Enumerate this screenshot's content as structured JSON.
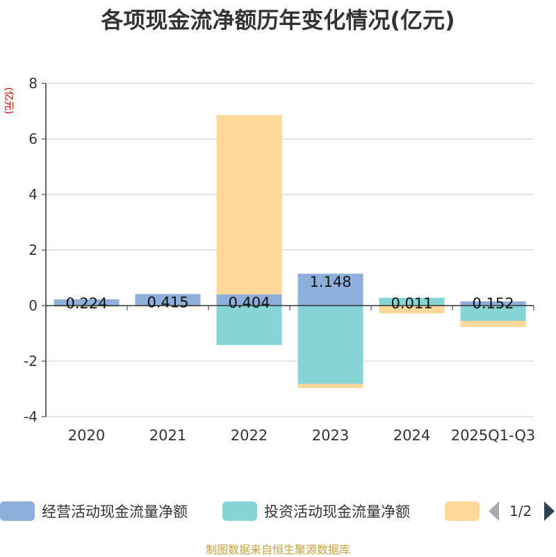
{
  "chart_data": {
    "type": "bar",
    "stacked": true,
    "title": "各项现金流净额历年变化情况(亿元)",
    "ylabel": "(亿元)",
    "xlabel": "",
    "categories": [
      "2020",
      "2021",
      "2022",
      "2023",
      "2024",
      "2025Q1-Q3"
    ],
    "ylim": [
      -4,
      8
    ],
    "yticks": [
      "-4",
      "-2",
      "0",
      "2",
      "4",
      "6",
      "8"
    ],
    "grid": true,
    "legend_position": "bottom",
    "series": [
      {
        "name": "经营活动现金流量净额",
        "color": "#8eaedc",
        "values": [
          0.224,
          0.415,
          0.404,
          1.148,
          0.011,
          0.152
        ],
        "labels": [
          "0.224",
          "0.415",
          "0.404",
          "1.148",
          "0.011",
          "0.152"
        ]
      },
      {
        "name": "投资活动现金流量净额",
        "color": "#86d4d6",
        "values": [
          -0.03,
          -0.02,
          -1.42,
          -2.82,
          0.27,
          -0.55
        ]
      },
      {
        "name": "",
        "color": "#fed899",
        "values": [
          -0.02,
          -0.02,
          6.45,
          -0.15,
          -0.28,
          -0.22
        ]
      }
    ]
  },
  "legend": {
    "page": "1/2"
  },
  "source": "制图数据来自恒生聚源数据库"
}
